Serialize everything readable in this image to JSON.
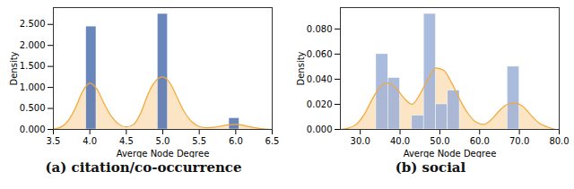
{
  "chart_data": [
    {
      "type": "histogram",
      "title": "(a) citation/co-occurrence",
      "x_label": "Averge Node Degree",
      "y_label": "Density",
      "bins": [
        3.95,
        4.09,
        4.23,
        4.37,
        4.51,
        4.65,
        4.79,
        4.93,
        5.07,
        5.21,
        5.35,
        5.49,
        5.63,
        5.77,
        5.91,
        6.05
      ],
      "counts": [
        2.45,
        0,
        0,
        0,
        0,
        0,
        0,
        2.75,
        0,
        0,
        0,
        0,
        0,
        0,
        0.27
      ],
      "color": "#4f72b1",
      "density_curve": {
        "color": "#f4a83a",
        "x": [
          3.5,
          3.6,
          3.7,
          3.8,
          3.9,
          4.0,
          4.1,
          4.2,
          4.3,
          4.4,
          4.5,
          4.6,
          4.7,
          4.8,
          4.9,
          5.0,
          5.1,
          5.2,
          5.3,
          5.4,
          5.5,
          5.6,
          5.7,
          5.8,
          5.9,
          6.0,
          6.1,
          6.2,
          6.3,
          6.4,
          6.5
        ],
        "values": [
          0.01,
          0.05,
          0.2,
          0.5,
          0.9,
          1.1,
          0.95,
          0.6,
          0.3,
          0.12,
          0.06,
          0.12,
          0.4,
          0.85,
          1.15,
          1.25,
          1.1,
          0.75,
          0.4,
          0.18,
          0.07,
          0.04,
          0.05,
          0.08,
          0.11,
          0.12,
          0.1,
          0.06,
          0.03,
          0.01,
          0.0
        ]
      },
      "xlim": [
        3.5,
        6.5
      ],
      "xticks": [
        {
          "value": 3.5,
          "label": "3.5"
        },
        {
          "value": 4.0,
          "label": "4.0"
        },
        {
          "value": 4.5,
          "label": "4.5"
        },
        {
          "value": 5.0,
          "label": "5.0"
        },
        {
          "value": 5.5,
          "label": "5.5"
        },
        {
          "value": 6.0,
          "label": "6.0"
        },
        {
          "value": 6.5,
          "label": "6.5"
        }
      ],
      "ylim": [
        0,
        2.9
      ],
      "yticks": [
        {
          "value": 0,
          "label": "0.000"
        },
        {
          "value": 0.5,
          "label": "0.500"
        },
        {
          "value": 1.0,
          "label": "1.000"
        },
        {
          "value": 1.5,
          "label": "1.500"
        },
        {
          "value": 2.0,
          "label": "2.000"
        },
        {
          "value": 2.5,
          "label": "2.500"
        }
      ],
      "grid": false
    },
    {
      "type": "histogram",
      "title": "(b) social",
      "x_label": "Averge Node Degree",
      "y_label": "Density",
      "bins": [
        34,
        37,
        40,
        43,
        46,
        49,
        52,
        55,
        58,
        61,
        64,
        67,
        70
      ],
      "counts": [
        0.06,
        0.041,
        0,
        0.011,
        0.092,
        0.02,
        0.031,
        0,
        0,
        0,
        0,
        0.05
      ],
      "color": "#9bb0d8",
      "density_curve": {
        "color": "#f4a83a",
        "x": [
          25,
          27,
          29,
          31,
          33,
          35,
          37,
          39,
          41,
          43,
          45,
          47,
          49,
          51,
          53,
          55,
          57,
          59,
          61,
          63,
          65,
          67,
          69,
          71,
          73,
          75,
          77,
          79
        ],
        "values": [
          0.0,
          0.001,
          0.004,
          0.012,
          0.024,
          0.034,
          0.037,
          0.033,
          0.025,
          0.02,
          0.028,
          0.04,
          0.049,
          0.047,
          0.037,
          0.024,
          0.013,
          0.006,
          0.004,
          0.008,
          0.015,
          0.02,
          0.021,
          0.018,
          0.011,
          0.005,
          0.002,
          0.0
        ]
      },
      "xlim": [
        25,
        80
      ],
      "xticks": [
        {
          "value": 30,
          "label": "30.0"
        },
        {
          "value": 40,
          "label": "40.0"
        },
        {
          "value": 50,
          "label": "50.0"
        },
        {
          "value": 60,
          "label": "60.0"
        },
        {
          "value": 70,
          "label": "70.0"
        },
        {
          "value": 80,
          "label": "80.0"
        }
      ],
      "ylim": [
        0,
        0.097
      ],
      "yticks": [
        {
          "value": 0,
          "label": "0.000"
        },
        {
          "value": 0.02,
          "label": "0.020"
        },
        {
          "value": 0.04,
          "label": "0.040"
        },
        {
          "value": 0.06,
          "label": "0.060"
        },
        {
          "value": 0.08,
          "label": "0.080"
        }
      ],
      "grid": false
    }
  ]
}
